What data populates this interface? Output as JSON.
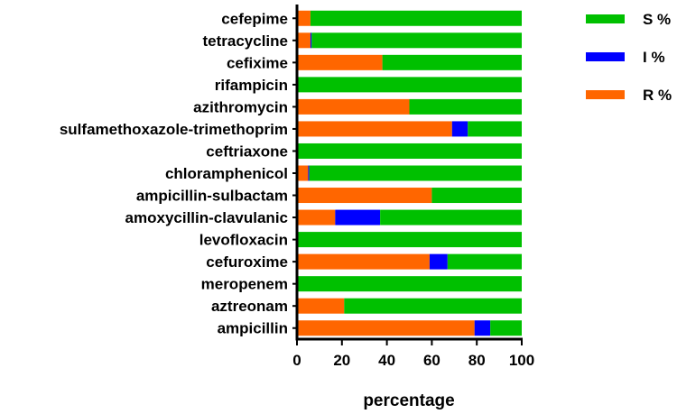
{
  "chart_data": {
    "type": "bar",
    "orientation": "horizontal",
    "stacked": true,
    "categories": [
      "cefepime",
      "tetracycline",
      "cefixime",
      "rifampicin",
      "azithromycin",
      "sulfamethoxazole-trimethoprim",
      "ceftriaxone",
      "chloramphenicol",
      "ampicillin-sulbactam",
      "amoxycillin-clavulanic",
      "levofloxacin",
      "cefuroxime",
      "meropenem",
      "aztreonam",
      "ampicillin"
    ],
    "series": [
      {
        "name": "R %",
        "color": "#ff6600",
        "values": [
          6,
          6,
          38,
          0,
          50,
          69,
          0,
          5,
          60,
          17,
          0,
          59,
          0,
          21,
          79
        ]
      },
      {
        "name": "I %",
        "color": "#0000ff",
        "values": [
          0,
          0.5,
          0,
          0,
          0,
          7,
          0,
          0.5,
          0,
          20,
          0,
          8,
          0,
          0,
          7
        ]
      },
      {
        "name": "S %",
        "color": "#00c000",
        "values": [
          94,
          93.5,
          62,
          100,
          50,
          24,
          100,
          94.5,
          40,
          63,
          100,
          33,
          100,
          79,
          14
        ]
      }
    ],
    "legend_order": [
      "S %",
      "I %",
      "R %"
    ],
    "xlabel": "percentage",
    "ylabel": "",
    "title": "",
    "xlim": [
      0,
      100
    ],
    "xticks": [
      0,
      20,
      40,
      60,
      80,
      100
    ],
    "grid": false,
    "legend_position": "right"
  }
}
